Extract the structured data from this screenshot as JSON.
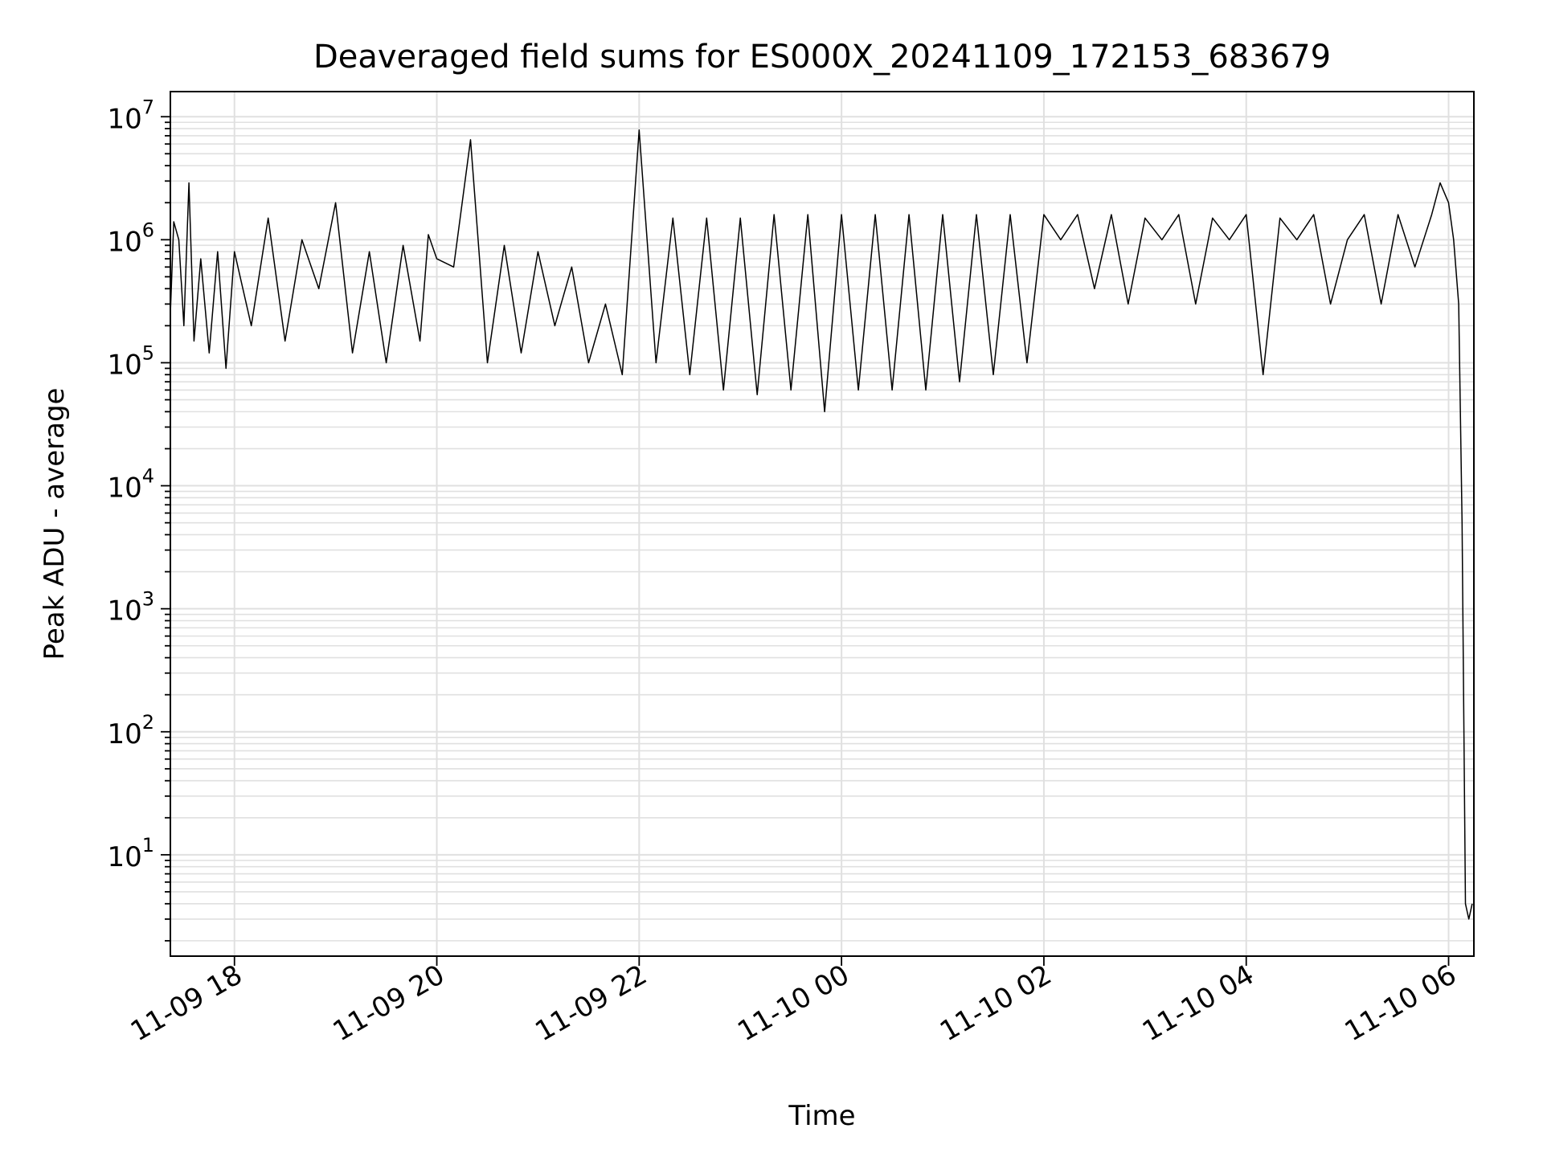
{
  "chart_data": {
    "type": "line",
    "title": "Deaveraged field sums for ES000X_20241109_172153_683679",
    "xlabel": "Time",
    "ylabel": "Peak ADU - average",
    "yscale": "log",
    "ylim": [
      1.5,
      16000000
    ],
    "xlim": [
      "2024-11-09 17:22",
      "2024-11-10 06:15"
    ],
    "grid": "on (major and minor)",
    "x_tick_labels": [
      "11-09 18",
      "11-09 20",
      "11-09 22",
      "11-10 00",
      "11-10 02",
      "11-10 04",
      "11-10 06"
    ],
    "x_ticks": [
      "2024-11-09 18:00",
      "2024-11-09 20:00",
      "2024-11-09 22:00",
      "2024-11-10 00:00",
      "2024-11-10 02:00",
      "2024-11-10 04:00",
      "2024-11-10 06:00"
    ],
    "y_tick_labels": [
      {
        "base": "10",
        "exp": "1",
        "value": 10
      },
      {
        "base": "10",
        "exp": "2",
        "value": 100
      },
      {
        "base": "10",
        "exp": "3",
        "value": 1000
      },
      {
        "base": "10",
        "exp": "4",
        "value": 10000
      },
      {
        "base": "10",
        "exp": "5",
        "value": 100000
      },
      {
        "base": "10",
        "exp": "6",
        "value": 1000000
      },
      {
        "base": "10",
        "exp": "7",
        "value": 10000000
      }
    ],
    "series": [
      {
        "color": "#000000",
        "x": [
          "2024-11-09 17:22",
          "2024-11-09 17:24",
          "2024-11-09 17:27",
          "2024-11-09 17:30",
          "2024-11-09 17:33",
          "2024-11-09 17:36",
          "2024-11-09 17:40",
          "2024-11-09 17:45",
          "2024-11-09 17:50",
          "2024-11-09 17:55",
          "2024-11-09 18:00",
          "2024-11-09 18:10",
          "2024-11-09 18:20",
          "2024-11-09 18:30",
          "2024-11-09 18:40",
          "2024-11-09 18:50",
          "2024-11-09 19:00",
          "2024-11-09 19:10",
          "2024-11-09 19:20",
          "2024-11-09 19:30",
          "2024-11-09 19:40",
          "2024-11-09 19:50",
          "2024-11-09 19:55",
          "2024-11-09 20:00",
          "2024-11-09 20:10",
          "2024-11-09 20:20",
          "2024-11-09 20:30",
          "2024-11-09 20:40",
          "2024-11-09 20:50",
          "2024-11-09 21:00",
          "2024-11-09 21:10",
          "2024-11-09 21:20",
          "2024-11-09 21:30",
          "2024-11-09 21:40",
          "2024-11-09 21:50",
          "2024-11-09 22:00",
          "2024-11-09 22:10",
          "2024-11-09 22:20",
          "2024-11-09 22:30",
          "2024-11-09 22:40",
          "2024-11-09 22:50",
          "2024-11-09 23:00",
          "2024-11-09 23:10",
          "2024-11-09 23:20",
          "2024-11-09 23:30",
          "2024-11-09 23:40",
          "2024-11-09 23:50",
          "2024-11-10 00:00",
          "2024-11-10 00:10",
          "2024-11-10 00:20",
          "2024-11-10 00:30",
          "2024-11-10 00:40",
          "2024-11-10 00:50",
          "2024-11-10 01:00",
          "2024-11-10 01:10",
          "2024-11-10 01:20",
          "2024-11-10 01:30",
          "2024-11-10 01:40",
          "2024-11-10 01:50",
          "2024-11-10 02:00",
          "2024-11-10 02:10",
          "2024-11-10 02:20",
          "2024-11-10 02:30",
          "2024-11-10 02:40",
          "2024-11-10 02:50",
          "2024-11-10 03:00",
          "2024-11-10 03:10",
          "2024-11-10 03:20",
          "2024-11-10 03:30",
          "2024-11-10 03:40",
          "2024-11-10 03:50",
          "2024-11-10 04:00",
          "2024-11-10 04:10",
          "2024-11-10 04:20",
          "2024-11-10 04:30",
          "2024-11-10 04:40",
          "2024-11-10 04:50",
          "2024-11-10 05:00",
          "2024-11-10 05:10",
          "2024-11-10 05:20",
          "2024-11-10 05:30",
          "2024-11-10 05:40",
          "2024-11-10 05:50",
          "2024-11-10 05:55",
          "2024-11-10 06:00",
          "2024-11-10 06:03",
          "2024-11-10 06:06",
          "2024-11-10 06:08",
          "2024-11-10 06:10",
          "2024-11-10 06:12",
          "2024-11-10 06:14"
        ],
        "y": [
          250000,
          1400000,
          1000000,
          200000,
          2900000,
          150000,
          700000,
          120000,
          800000,
          90000,
          800000,
          200000,
          1500000,
          150000,
          1000000,
          400000,
          2000000,
          120000,
          800000,
          100000,
          900000,
          150000,
          1100000,
          700000,
          600000,
          6500000,
          100000,
          900000,
          120000,
          800000,
          200000,
          600000,
          100000,
          300000,
          80000,
          7800000,
          100000,
          1500000,
          80000,
          1500000,
          60000,
          1500000,
          55000,
          1600000,
          60000,
          1600000,
          40000,
          1600000,
          60000,
          1600000,
          60000,
          1600000,
          60000,
          1600000,
          70000,
          1600000,
          80000,
          1600000,
          100000,
          1600000,
          1000000,
          1600000,
          400000,
          1600000,
          300000,
          1500000,
          1000000,
          1600000,
          300000,
          1500000,
          1000000,
          1600000,
          80000,
          1500000,
          1000000,
          1600000,
          300000,
          1000000,
          1600000,
          300000,
          1600000,
          600000,
          1600000,
          2900000,
          2000000,
          1000000,
          300000,
          5000,
          4,
          3,
          4
        ]
      }
    ]
  }
}
